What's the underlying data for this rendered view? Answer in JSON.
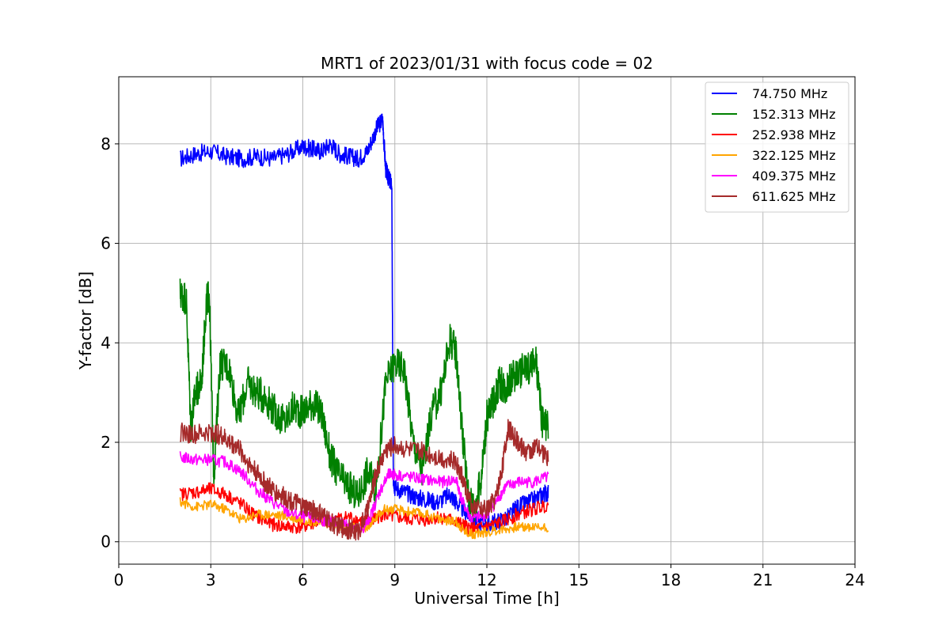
{
  "chart_data": {
    "type": "line",
    "title": "MRT1 of 2023/01/31 with focus code = 02",
    "xlabel": "Universal Time [h]",
    "ylabel": "Y-factor [dB]",
    "xlim": [
      0,
      24
    ],
    "ylim": [
      -0.45,
      9.35
    ],
    "xticks": [
      0,
      3,
      6,
      9,
      12,
      15,
      18,
      21,
      24
    ],
    "xtick_labels": [
      "0",
      "3",
      "6",
      "9",
      "12",
      "15",
      "18",
      "21",
      "24"
    ],
    "yticks": [
      0,
      2,
      4,
      6,
      8
    ],
    "ytick_labels": [
      "0",
      "2",
      "4",
      "6",
      "8"
    ],
    "grid": true,
    "legend_position": "top-right",
    "series": [
      {
        "name": " 74.750 MHz",
        "color": "#0000ff",
        "x": [
          2.0,
          2.5,
          3.0,
          3.5,
          4.0,
          4.5,
          5.0,
          5.5,
          6.0,
          6.3,
          6.6,
          6.9,
          7.2,
          7.5,
          7.8,
          8.1,
          8.4,
          8.6,
          8.7,
          8.8,
          8.9,
          8.95,
          9.0,
          9.3,
          9.7,
          10.0,
          10.4,
          10.8,
          11.0,
          11.3,
          11.6,
          12.0,
          12.3,
          12.7,
          13.0,
          13.4,
          13.8,
          14.0
        ],
        "y": [
          7.7,
          7.8,
          7.85,
          7.75,
          7.7,
          7.75,
          7.7,
          7.8,
          7.95,
          7.9,
          7.85,
          8.0,
          7.8,
          7.75,
          7.7,
          7.85,
          8.3,
          8.5,
          7.5,
          7.3,
          7.2,
          1.3,
          1.1,
          1.0,
          0.9,
          0.85,
          0.8,
          0.95,
          0.8,
          0.6,
          0.45,
          0.35,
          0.4,
          0.5,
          0.7,
          0.8,
          0.95,
          1.0
        ]
      },
      {
        "name": "152.313 MHz",
        "color": "#008000",
        "x": [
          2.0,
          2.2,
          2.35,
          2.5,
          2.7,
          2.85,
          2.95,
          3.1,
          3.3,
          3.6,
          3.9,
          4.2,
          4.5,
          4.8,
          5.1,
          5.4,
          5.7,
          6.0,
          6.3,
          6.6,
          6.9,
          7.2,
          7.5,
          7.8,
          8.1,
          8.4,
          8.7,
          9.0,
          9.3,
          9.6,
          9.9,
          10.2,
          10.5,
          10.8,
          11.0,
          11.2,
          11.4,
          11.6,
          11.8,
          12.0,
          12.2,
          12.4,
          12.6,
          12.8,
          13.0,
          13.3,
          13.6,
          13.8,
          14.0
        ],
        "y": [
          5.0,
          4.9,
          2.3,
          3.0,
          3.2,
          4.8,
          5.0,
          1.3,
          3.6,
          3.5,
          2.5,
          3.2,
          3.0,
          2.9,
          2.6,
          2.4,
          2.7,
          2.6,
          2.8,
          2.6,
          1.7,
          1.3,
          1.1,
          0.9,
          1.4,
          1.1,
          3.2,
          3.6,
          3.5,
          2.0,
          1.4,
          2.6,
          3.0,
          4.1,
          3.8,
          2.2,
          0.9,
          0.7,
          1.2,
          2.5,
          2.8,
          3.2,
          3.1,
          3.3,
          3.4,
          3.5,
          3.6,
          2.4,
          2.3
        ]
      },
      {
        "name": "252.938 MHz",
        "color": "#ff0000",
        "x": [
          2.0,
          2.5,
          3.0,
          3.5,
          4.0,
          4.5,
          5.0,
          5.5,
          6.0,
          6.5,
          7.0,
          7.5,
          8.0,
          8.3,
          8.6,
          9.0,
          9.5,
          10.0,
          10.5,
          11.0,
          11.3,
          11.6,
          12.0,
          12.5,
          13.0,
          13.5,
          14.0
        ],
        "y": [
          0.95,
          1.0,
          1.05,
          0.95,
          0.75,
          0.5,
          0.35,
          0.3,
          0.3,
          0.4,
          0.45,
          0.5,
          0.4,
          0.45,
          0.55,
          0.5,
          0.45,
          0.45,
          0.5,
          0.4,
          0.3,
          0.25,
          0.3,
          0.4,
          0.55,
          0.65,
          0.75
        ]
      },
      {
        "name": "322.125 MHz",
        "color": "#ffa500",
        "x": [
          2.0,
          2.5,
          3.0,
          3.5,
          4.0,
          4.5,
          5.0,
          5.5,
          6.0,
          6.5,
          7.0,
          7.5,
          8.0,
          8.3,
          8.6,
          9.0,
          9.5,
          10.0,
          10.5,
          11.0,
          11.3,
          11.6,
          12.0,
          12.5,
          13.0,
          13.5,
          14.0
        ],
        "y": [
          0.8,
          0.7,
          0.75,
          0.65,
          0.45,
          0.55,
          0.55,
          0.5,
          0.45,
          0.4,
          0.35,
          0.3,
          0.25,
          0.4,
          0.65,
          0.65,
          0.6,
          0.55,
          0.45,
          0.4,
          0.2,
          0.15,
          0.2,
          0.25,
          0.3,
          0.3,
          0.3
        ]
      },
      {
        "name": "409.375 MHz",
        "color": "#ff00ff",
        "x": [
          2.0,
          2.5,
          3.0,
          3.5,
          4.0,
          4.5,
          5.0,
          5.5,
          6.0,
          6.5,
          7.0,
          7.5,
          7.9,
          8.2,
          8.5,
          8.8,
          9.0,
          9.5,
          10.0,
          10.5,
          11.0,
          11.2,
          11.5,
          12.0,
          12.3,
          12.6,
          13.0,
          13.5,
          14.0
        ],
        "y": [
          1.7,
          1.65,
          1.65,
          1.6,
          1.4,
          1.05,
          0.8,
          0.6,
          0.5,
          0.45,
          0.4,
          0.35,
          0.2,
          0.5,
          1.0,
          1.35,
          1.35,
          1.3,
          1.25,
          1.2,
          1.25,
          0.8,
          0.45,
          0.55,
          0.8,
          1.1,
          1.2,
          1.2,
          1.3
        ]
      },
      {
        "name": "611.625 MHz",
        "color": "#a52a2a",
        "x": [
          2.0,
          2.5,
          3.0,
          3.3,
          3.6,
          3.9,
          4.2,
          4.5,
          4.8,
          5.1,
          5.4,
          5.7,
          6.0,
          6.3,
          6.6,
          6.9,
          7.2,
          7.5,
          7.8,
          8.1,
          8.4,
          8.7,
          9.0,
          9.5,
          10.0,
          10.5,
          11.0,
          11.2,
          11.5,
          12.0,
          12.3,
          12.5,
          12.7,
          13.0,
          13.3,
          13.6,
          14.0
        ],
        "y": [
          2.2,
          2.15,
          2.2,
          2.15,
          2.0,
          1.9,
          1.6,
          1.4,
          1.15,
          1.0,
          0.9,
          0.8,
          0.7,
          0.65,
          0.55,
          0.4,
          0.3,
          0.25,
          0.2,
          0.6,
          1.4,
          1.85,
          1.95,
          1.85,
          1.8,
          1.7,
          1.6,
          1.3,
          0.7,
          0.65,
          0.9,
          1.5,
          2.3,
          2.0,
          1.8,
          1.9,
          1.7
        ]
      }
    ]
  }
}
